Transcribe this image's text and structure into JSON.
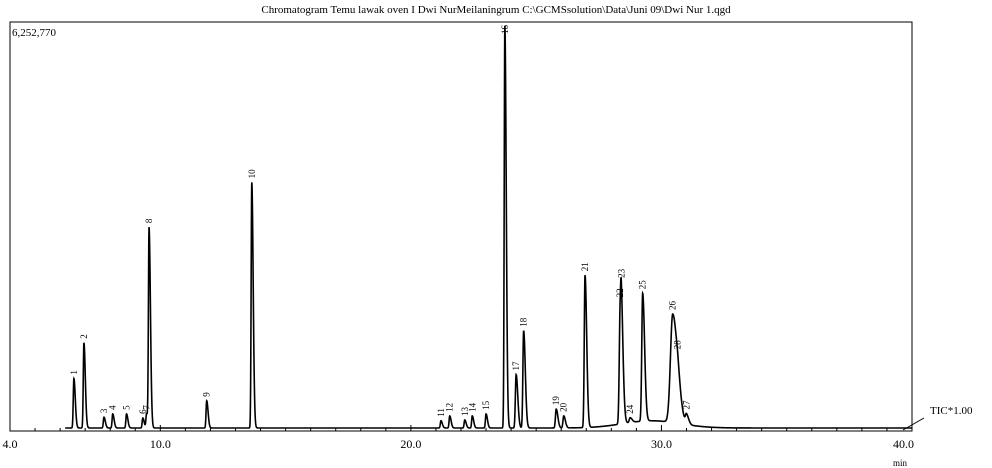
{
  "chart_data": {
    "type": "line",
    "title": "Chromatogram Temu lawak oven I Dwi NurMeilaningrum C:\\GCMSsolution\\Data\\Juni 09\\Dwi Nur 1.qgd",
    "y_max_label": "6,252,770",
    "trace_label": "TIC*1.00",
    "xlabel": "min",
    "xlim": [
      4.0,
      40.0
    ],
    "ylim": [
      0,
      6252770
    ],
    "x_ticks": [
      {
        "v": 4.0,
        "label": "4.0"
      },
      {
        "v": 10.0,
        "label": "10.0"
      },
      {
        "v": 20.0,
        "label": "20.0"
      },
      {
        "v": 30.0,
        "label": "30.0"
      },
      {
        "v": 40.0,
        "label": "40.0"
      }
    ],
    "peaks": [
      {
        "label": "1",
        "rt": 6.55,
        "h": 0.123,
        "w": 0.025
      },
      {
        "label": "2",
        "rt": 6.95,
        "h": 0.212,
        "w": 0.025
      },
      {
        "label": "3",
        "rt": 7.75,
        "h": 0.027,
        "w": 0.025
      },
      {
        "label": "4",
        "rt": 8.1,
        "h": 0.035,
        "w": 0.025
      },
      {
        "label": "5",
        "rt": 8.65,
        "h": 0.035,
        "w": 0.025
      },
      {
        "label": "6",
        "rt": 9.3,
        "h": 0.025,
        "w": 0.025
      },
      {
        "label": "7",
        "rt": 9.45,
        "h": 0.035,
        "w": 0.025
      },
      {
        "label": "8",
        "rt": 9.55,
        "h": 0.493,
        "w": 0.025
      },
      {
        "label": "9",
        "rt": 11.85,
        "h": 0.068,
        "w": 0.025
      },
      {
        "label": "10",
        "rt": 13.65,
        "h": 0.611,
        "w": 0.025
      },
      {
        "label": "11",
        "rt": 21.2,
        "h": 0.018,
        "w": 0.025
      },
      {
        "label": "12",
        "rt": 21.55,
        "h": 0.03,
        "w": 0.025
      },
      {
        "label": "13",
        "rt": 22.15,
        "h": 0.02,
        "w": 0.025
      },
      {
        "label": "14",
        "rt": 22.45,
        "h": 0.03,
        "w": 0.025
      },
      {
        "label": "15",
        "rt": 23.0,
        "h": 0.035,
        "w": 0.025
      },
      {
        "label": "16",
        "rt": 23.75,
        "h": 1.0,
        "w": 0.025
      },
      {
        "label": "17",
        "rt": 24.2,
        "h": 0.133,
        "w": 0.03
      },
      {
        "label": "18",
        "rt": 24.5,
        "h": 0.242,
        "w": 0.03
      },
      {
        "label": "19",
        "rt": 25.8,
        "h": 0.047,
        "w": 0.03
      },
      {
        "label": "20",
        "rt": 26.1,
        "h": 0.03,
        "w": 0.03
      },
      {
        "label": "21",
        "rt": 26.95,
        "h": 0.379,
        "w": 0.03
      },
      {
        "label": "22",
        "rt": 28.35,
        "h": 0.251,
        "w": 0.035
      },
      {
        "label": "23",
        "rt": 28.4,
        "h": 0.15,
        "w": 0.035
      },
      {
        "label": "24",
        "rt": 28.75,
        "h": 0.012,
        "w": 0.035
      },
      {
        "label": "25",
        "rt": 29.25,
        "h": 0.318,
        "w": 0.035
      },
      {
        "label": "26",
        "rt": 30.45,
        "h": 0.27,
        "w": 0.09
      },
      {
        "label": "27",
        "rt": 31.0,
        "h": 0.022,
        "w": 0.04
      },
      {
        "label": "28",
        "rt": 30.65,
        "h": 0.012,
        "w": 0.04
      }
    ]
  }
}
